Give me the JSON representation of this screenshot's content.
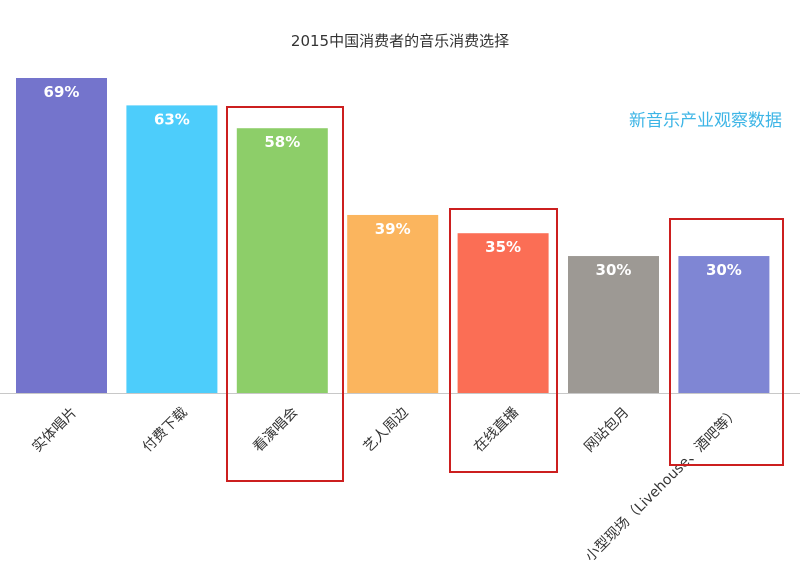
{
  "chart_data": {
    "type": "bar",
    "title": "2015中国消费者的音乐消费选择",
    "categories": [
      "实体唱片",
      "付费下载",
      "看演唱会",
      "艺人周边",
      "在线直播",
      "网站包月",
      "小型现场（Livehouse、酒吧等）"
    ],
    "values": [
      69,
      63,
      58,
      39,
      35,
      30,
      30
    ],
    "data_labels": [
      "69%",
      "63%",
      "58%",
      "39%",
      "35%",
      "30%",
      "30%"
    ],
    "colors": [
      "#7474cc",
      "#4dcdfb",
      "#8dce69",
      "#fbb55e",
      "#fb6e55",
      "#9d9994",
      "#7f86d4"
    ],
    "highlighted_categories": [
      "看演唱会",
      "在线直播",
      "小型现场（Livehouse、酒吧等）"
    ],
    "highlight_color": "#cc1f1f",
    "unit": "%",
    "ylim": [
      0,
      69
    ],
    "grid": false,
    "xlabel": "",
    "ylabel": ""
  },
  "watermark": "新音乐产业观察数据"
}
